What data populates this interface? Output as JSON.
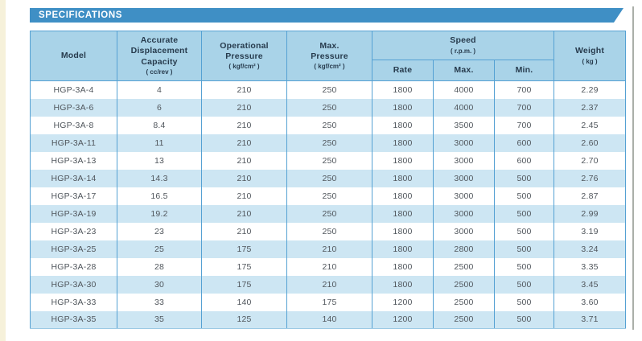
{
  "page": {
    "title": "SPECIFICATIONS"
  },
  "colors": {
    "banner_blue": "#3f8fc5",
    "header_bg": "#a9d3e8",
    "alt_row_bg": "#cde6f3",
    "divider_blue": "#55a1d3",
    "header_text": "#273b4d",
    "body_text": "#50565c",
    "page_edge_cream": "#f6f1da"
  },
  "table": {
    "header": {
      "model": "Model",
      "capacity_label": "Accurate\nDisplacement\nCapacity",
      "capacity_unit": "( cc/rev )",
      "operational_pressure_label": "Operational\nPressure",
      "operational_pressure_unit": "( kgf/cm² )",
      "max_pressure_label": "Max.\nPressure",
      "max_pressure_unit": "( kgf/cm² )",
      "speed_label": "Speed",
      "speed_unit": "( r.p.m. )",
      "speed_sub_rate": "Rate",
      "speed_sub_max": "Max.",
      "speed_sub_min": "Min.",
      "weight_label": "Weight",
      "weight_unit": "( kg )"
    },
    "rows": [
      {
        "model": "HGP-3A-4",
        "capacity": "4",
        "op_pressure": "210",
        "max_pressure": "250",
        "speed_rate": "1800",
        "speed_max": "4000",
        "speed_min": "700",
        "weight": "2.29"
      },
      {
        "model": "HGP-3A-6",
        "capacity": "6",
        "op_pressure": "210",
        "max_pressure": "250",
        "speed_rate": "1800",
        "speed_max": "4000",
        "speed_min": "700",
        "weight": "2.37"
      },
      {
        "model": "HGP-3A-8",
        "capacity": "8.4",
        "op_pressure": "210",
        "max_pressure": "250",
        "speed_rate": "1800",
        "speed_max": "3500",
        "speed_min": "700",
        "weight": "2.45"
      },
      {
        "model": "HGP-3A-11",
        "capacity": "11",
        "op_pressure": "210",
        "max_pressure": "250",
        "speed_rate": "1800",
        "speed_max": "3000",
        "speed_min": "600",
        "weight": "2.60"
      },
      {
        "model": "HGP-3A-13",
        "capacity": "13",
        "op_pressure": "210",
        "max_pressure": "250",
        "speed_rate": "1800",
        "speed_max": "3000",
        "speed_min": "600",
        "weight": "2.70"
      },
      {
        "model": "HGP-3A-14",
        "capacity": "14.3",
        "op_pressure": "210",
        "max_pressure": "250",
        "speed_rate": "1800",
        "speed_max": "3000",
        "speed_min": "500",
        "weight": "2.76"
      },
      {
        "model": "HGP-3A-17",
        "capacity": "16.5",
        "op_pressure": "210",
        "max_pressure": "250",
        "speed_rate": "1800",
        "speed_max": "3000",
        "speed_min": "500",
        "weight": "2.87"
      },
      {
        "model": "HGP-3A-19",
        "capacity": "19.2",
        "op_pressure": "210",
        "max_pressure": "250",
        "speed_rate": "1800",
        "speed_max": "3000",
        "speed_min": "500",
        "weight": "2.99"
      },
      {
        "model": "HGP-3A-23",
        "capacity": "23",
        "op_pressure": "210",
        "max_pressure": "250",
        "speed_rate": "1800",
        "speed_max": "3000",
        "speed_min": "500",
        "weight": "3.19"
      },
      {
        "model": "HGP-3A-25",
        "capacity": "25",
        "op_pressure": "175",
        "max_pressure": "210",
        "speed_rate": "1800",
        "speed_max": "2800",
        "speed_min": "500",
        "weight": "3.24"
      },
      {
        "model": "HGP-3A-28",
        "capacity": "28",
        "op_pressure": "175",
        "max_pressure": "210",
        "speed_rate": "1800",
        "speed_max": "2500",
        "speed_min": "500",
        "weight": "3.35"
      },
      {
        "model": "HGP-3A-30",
        "capacity": "30",
        "op_pressure": "175",
        "max_pressure": "210",
        "speed_rate": "1800",
        "speed_max": "2500",
        "speed_min": "500",
        "weight": "3.45"
      },
      {
        "model": "HGP-3A-33",
        "capacity": "33",
        "op_pressure": "140",
        "max_pressure": "175",
        "speed_rate": "1200",
        "speed_max": "2500",
        "speed_min": "500",
        "weight": "3.60"
      },
      {
        "model": "HGP-3A-35",
        "capacity": "35",
        "op_pressure": "125",
        "max_pressure": "140",
        "speed_rate": "1200",
        "speed_max": "2500",
        "speed_min": "500",
        "weight": "3.71"
      }
    ]
  }
}
